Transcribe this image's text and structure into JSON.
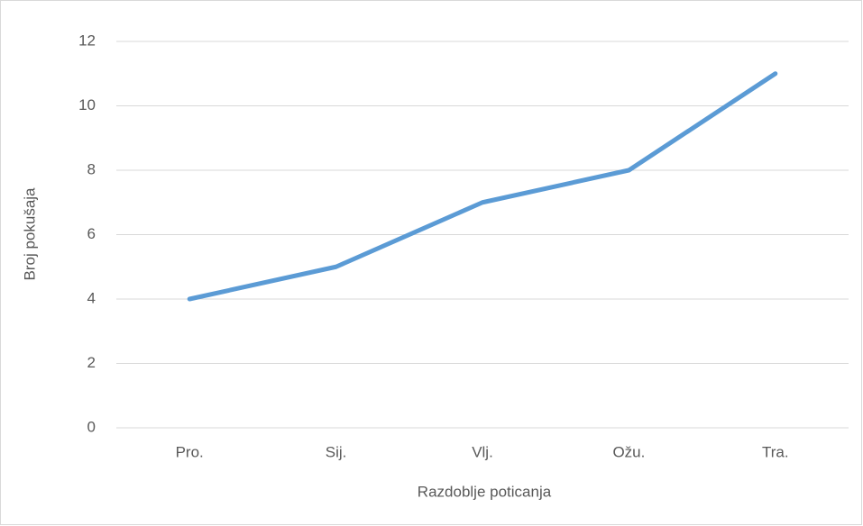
{
  "chart_data": {
    "type": "line",
    "x_label": "Razdoblje poticanja",
    "y_label": "Broj pokušaja",
    "categories": [
      "Pro.",
      "Sij.",
      "Vlj.",
      "Ožu.",
      "Tra."
    ],
    "values": [
      4,
      5,
      7,
      8,
      11
    ],
    "color": "#5b9bd5",
    "ylim": [
      0,
      12
    ],
    "yticks": [
      0,
      2,
      4,
      6,
      8,
      10,
      12
    ],
    "grid": true
  }
}
